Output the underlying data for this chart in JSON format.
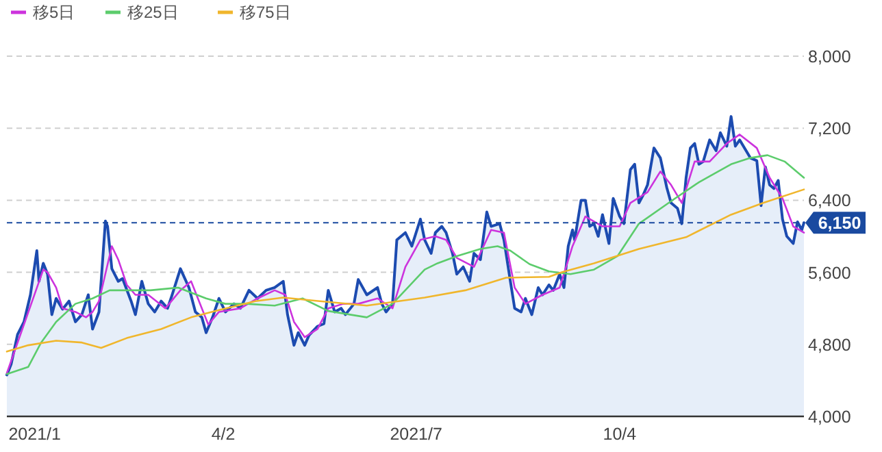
{
  "chart_data": {
    "type": "line",
    "xlim": [
      "2020-12-22",
      "2021-12-29"
    ],
    "xticks": [
      {
        "value": "2021-01-04",
        "label": "2021/1"
      },
      {
        "value": "2021-04-02",
        "label": "4/2"
      },
      {
        "value": "2021-07-01",
        "label": "2021/7"
      },
      {
        "value": "2021-10-04",
        "label": "10/4"
      }
    ],
    "ylim": [
      4000,
      8000
    ],
    "yticks": [
      {
        "value": 4000,
        "label": "4,000"
      },
      {
        "value": 4800,
        "label": "4,800"
      },
      {
        "value": 5600,
        "label": "5,600"
      },
      {
        "value": 6400,
        "label": "6,400"
      },
      {
        "value": 7200,
        "label": "7,200"
      },
      {
        "value": 8000,
        "label": "8,000"
      }
    ],
    "grid": "y",
    "legend": "top left",
    "marker": "none",
    "ref_lines": [
      {
        "axis": "y",
        "value": 6150,
        "label": "6,150",
        "color": "#1a4aa0",
        "line_style": "dashed"
      }
    ],
    "series": [
      {
        "type": "area",
        "color": "#1c4bb0",
        "x": [
          "2020-12-22",
          "2020-12-24",
          "2020-12-27",
          "2020-12-30",
          "2021-01-02",
          "2021-01-05",
          "2021-01-06",
          "2021-01-08",
          "2021-01-10",
          "2021-01-12",
          "2021-01-14",
          "2021-01-17",
          "2021-01-20",
          "2021-01-23",
          "2021-01-26",
          "2021-01-29",
          "2021-01-31",
          "2021-02-03",
          "2021-02-06",
          "2021-02-07",
          "2021-02-09",
          "2021-02-12",
          "2021-02-14",
          "2021-02-18",
          "2021-02-20",
          "2021-02-23",
          "2021-02-26",
          "2021-03-01",
          "2021-03-04",
          "2021-03-07",
          "2021-03-09",
          "2021-03-13",
          "2021-03-17",
          "2021-03-20",
          "2021-03-23",
          "2021-03-25",
          "2021-03-28",
          "2021-03-31",
          "2021-04-03",
          "2021-04-07",
          "2021-04-10",
          "2021-04-14",
          "2021-04-18",
          "2021-04-22",
          "2021-04-26",
          "2021-04-30",
          "2021-05-02",
          "2021-05-05",
          "2021-05-07",
          "2021-05-10",
          "2021-05-12",
          "2021-05-16",
          "2021-05-19",
          "2021-05-21",
          "2021-05-24",
          "2021-05-27",
          "2021-05-29",
          "2021-06-02",
          "2021-06-04",
          "2021-06-08",
          "2021-06-13",
          "2021-06-15",
          "2021-06-17",
          "2021-06-20",
          "2021-06-22",
          "2021-06-26",
          "2021-06-29",
          "2021-07-03",
          "2021-07-05",
          "2021-07-08",
          "2021-07-10",
          "2021-07-13",
          "2021-07-15",
          "2021-07-18",
          "2021-07-20",
          "2021-07-23",
          "2021-07-26",
          "2021-07-28",
          "2021-07-31",
          "2021-08-03",
          "2021-08-05",
          "2021-08-09",
          "2021-08-11",
          "2021-08-14",
          "2021-08-16",
          "2021-08-19",
          "2021-08-21",
          "2021-08-24",
          "2021-08-27",
          "2021-08-29",
          "2021-09-01",
          "2021-09-03",
          "2021-09-06",
          "2021-09-08",
          "2021-09-10",
          "2021-09-12",
          "2021-09-13",
          "2021-09-16",
          "2021-09-18",
          "2021-09-20",
          "2021-09-22",
          "2021-09-24",
          "2021-09-26",
          "2021-09-29",
          "2021-10-01",
          "2021-10-04",
          "2021-10-06",
          "2021-10-09",
          "2021-10-11",
          "2021-10-13",
          "2021-10-15",
          "2021-10-17",
          "2021-10-20",
          "2021-10-23",
          "2021-10-26",
          "2021-10-28",
          "2021-10-31",
          "2021-11-02",
          "2021-11-04",
          "2021-11-06",
          "2021-11-08",
          "2021-11-10",
          "2021-11-12",
          "2021-11-15",
          "2021-11-18",
          "2021-11-20",
          "2021-11-23",
          "2021-11-25",
          "2021-11-27",
          "2021-11-29",
          "2021-12-02",
          "2021-12-04",
          "2021-12-07",
          "2021-12-09",
          "2021-12-11",
          "2021-12-13",
          "2021-12-15",
          "2021-12-17",
          "2021-12-19",
          "2021-12-21",
          "2021-12-24",
          "2021-12-26",
          "2021-12-28",
          "2021-12-29"
        ],
        "values": [
          4460,
          4580,
          4910,
          5050,
          5350,
          5840,
          5500,
          5700,
          5580,
          5130,
          5310,
          5190,
          5280,
          5050,
          5130,
          5350,
          4970,
          5160,
          6170,
          6110,
          5640,
          5500,
          5530,
          5280,
          5130,
          5500,
          5250,
          5160,
          5280,
          5200,
          5340,
          5640,
          5430,
          5160,
          5100,
          4930,
          5100,
          5310,
          5160,
          5250,
          5200,
          5400,
          5310,
          5400,
          5430,
          5500,
          5130,
          4790,
          4930,
          4790,
          4900,
          5000,
          5030,
          5400,
          5160,
          5200,
          5130,
          5250,
          5520,
          5350,
          5430,
          5250,
          5160,
          5250,
          5960,
          6040,
          5890,
          6190,
          5960,
          5810,
          6040,
          6110,
          6040,
          5810,
          5580,
          5660,
          5500,
          5810,
          5740,
          6270,
          6110,
          6140,
          5960,
          5500,
          5200,
          5160,
          5310,
          5130,
          5430,
          5350,
          5460,
          5400,
          5580,
          5430,
          5890,
          6070,
          5960,
          6400,
          6400,
          6110,
          6140,
          6000,
          6240,
          5920,
          6420,
          6220,
          6140,
          6740,
          6800,
          6370,
          6460,
          6570,
          6980,
          6870,
          6540,
          6370,
          6310,
          6140,
          6650,
          6980,
          7030,
          6800,
          6830,
          7070,
          6950,
          7150,
          7000,
          7330,
          7000,
          7070,
          6950,
          6870,
          6840,
          6340,
          6770,
          6570,
          6530,
          6620,
          6190,
          6000,
          5920,
          6160,
          6070,
          6150
        ]
      },
      {
        "name": "移5日",
        "color": "#cc33dd",
        "x": [
          "2020-12-22",
          "2021-01-08",
          "2021-01-10",
          "2021-01-14",
          "2021-01-17",
          "2021-01-23",
          "2021-01-28",
          "2021-01-31",
          "2021-02-03",
          "2021-02-09",
          "2021-02-12",
          "2021-02-16",
          "2021-02-20",
          "2021-02-26",
          "2021-03-06",
          "2021-03-13",
          "2021-03-18",
          "2021-03-23",
          "2021-03-26",
          "2021-03-31",
          "2021-04-10",
          "2021-04-18",
          "2021-04-26",
          "2021-05-01",
          "2021-05-05",
          "2021-05-10",
          "2021-05-16",
          "2021-05-21",
          "2021-05-28",
          "2021-06-04",
          "2021-06-13",
          "2021-06-20",
          "2021-06-26",
          "2021-07-03",
          "2021-07-10",
          "2021-07-15",
          "2021-07-20",
          "2021-07-28",
          "2021-08-05",
          "2021-08-11",
          "2021-08-16",
          "2021-08-21",
          "2021-08-29",
          "2021-09-06",
          "2021-09-12",
          "2021-09-18",
          "2021-09-26",
          "2021-10-04",
          "2021-10-09",
          "2021-10-17",
          "2021-10-23",
          "2021-10-28",
          "2021-11-02",
          "2021-11-08",
          "2021-11-15",
          "2021-11-23",
          "2021-11-29",
          "2021-12-07",
          "2021-12-13",
          "2021-12-19",
          "2021-12-24",
          "2021-12-29"
        ],
        "values": [
          4480,
          5630,
          5600,
          5430,
          5200,
          5160,
          5100,
          5160,
          5280,
          5890,
          5740,
          5460,
          5350,
          5350,
          5200,
          5400,
          5500,
          5200,
          5020,
          5160,
          5200,
          5310,
          5400,
          5350,
          5050,
          4880,
          4970,
          5200,
          5250,
          5250,
          5310,
          5200,
          5660,
          5960,
          6000,
          5960,
          5760,
          5660,
          6070,
          6040,
          5430,
          5250,
          5350,
          5430,
          5890,
          6220,
          6110,
          6110,
          6370,
          6490,
          6720,
          6570,
          6370,
          6830,
          6830,
          7030,
          7130,
          6980,
          6650,
          6420,
          6110,
          6040
        ]
      },
      {
        "name": "移25日",
        "color": "#5ccc6c",
        "x": [
          "2020-12-22",
          "2021-01-01",
          "2021-01-07",
          "2021-01-14",
          "2021-01-23",
          "2021-01-31",
          "2021-02-08",
          "2021-02-18",
          "2021-02-27",
          "2021-03-12",
          "2021-03-25",
          "2021-04-03",
          "2021-04-13",
          "2021-04-26",
          "2021-05-09",
          "2021-05-21",
          "2021-06-08",
          "2021-06-20",
          "2021-07-05",
          "2021-07-11",
          "2021-07-20",
          "2021-07-31",
          "2021-08-08",
          "2021-08-14",
          "2021-08-23",
          "2021-09-01",
          "2021-09-11",
          "2021-09-22",
          "2021-10-03",
          "2021-10-13",
          "2021-10-28",
          "2021-11-10",
          "2021-11-25",
          "2021-12-04",
          "2021-12-12",
          "2021-12-20",
          "2021-12-29"
        ],
        "values": [
          4470,
          4550,
          4820,
          5050,
          5250,
          5310,
          5400,
          5400,
          5400,
          5430,
          5310,
          5250,
          5250,
          5230,
          5310,
          5170,
          5100,
          5250,
          5630,
          5700,
          5780,
          5860,
          5890,
          5840,
          5690,
          5610,
          5580,
          5630,
          5780,
          6140,
          6390,
          6600,
          6800,
          6870,
          6900,
          6830,
          6650
        ]
      },
      {
        "name": "移75日",
        "color": "#f0b62c",
        "x": [
          "2020-12-22",
          "2021-01-01",
          "2021-01-14",
          "2021-01-26",
          "2021-02-04",
          "2021-02-16",
          "2021-03-04",
          "2021-03-18",
          "2021-03-31",
          "2021-04-17",
          "2021-04-30",
          "2021-05-17",
          "2021-06-08",
          "2021-07-05",
          "2021-07-24",
          "2021-08-12",
          "2021-09-01",
          "2021-09-07",
          "2021-09-22",
          "2021-10-13",
          "2021-11-04",
          "2021-11-25",
          "2021-12-10",
          "2021-12-29"
        ],
        "values": [
          4720,
          4790,
          4840,
          4820,
          4760,
          4870,
          4970,
          5100,
          5180,
          5280,
          5320,
          5280,
          5230,
          5320,
          5400,
          5540,
          5550,
          5600,
          5700,
          5860,
          5990,
          6240,
          6370,
          6520
        ]
      }
    ]
  }
}
